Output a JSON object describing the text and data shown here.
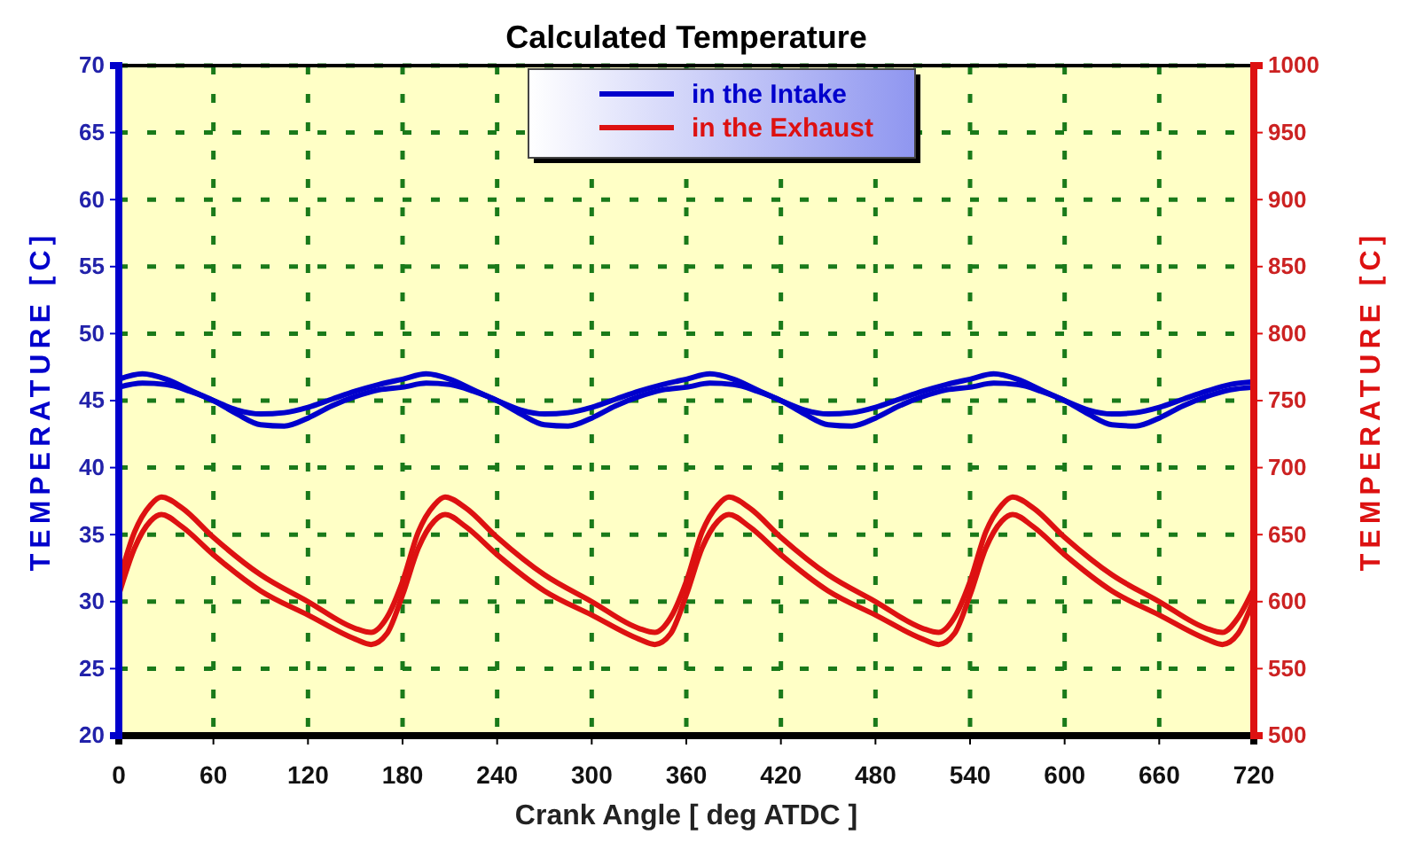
{
  "chart_data": {
    "type": "line",
    "title": "Calculated Temperature",
    "xlabel": "Crank Angle    [ deg ATDC ]",
    "ylabel": "TEMPERATURE   [C]",
    "y2label": "TEMPERATURE   [C]",
    "xlim": [
      0,
      720
    ],
    "xticks": [
      0,
      60,
      120,
      180,
      240,
      300,
      360,
      420,
      480,
      540,
      600,
      660,
      720
    ],
    "ylim": [
      20,
      70
    ],
    "yticks": [
      20,
      25,
      30,
      35,
      40,
      45,
      50,
      55,
      60,
      65,
      70
    ],
    "y2lim": [
      500,
      1000
    ],
    "y2ticks": [
      500,
      550,
      600,
      650,
      700,
      750,
      800,
      850,
      900,
      950,
      1000
    ],
    "grid": true,
    "legend": "top",
    "line_style": "solid",
    "series": [
      {
        "name": "in the Intake",
        "color": "#0000cc",
        "x": [
          0,
          15,
          30,
          45,
          60,
          75,
          90,
          105,
          120,
          135,
          150,
          165,
          180,
          195,
          210,
          225,
          240,
          255,
          270,
          285,
          300,
          315,
          330,
          345,
          360,
          375,
          390,
          405,
          420,
          435,
          450,
          465,
          480,
          495,
          510,
          525,
          540,
          555,
          570,
          585,
          600,
          615,
          630,
          645,
          660,
          675,
          690,
          705,
          720
        ],
        "values": [
          46.6,
          47.0,
          46.6,
          45.8,
          45.0,
          44.3,
          44.0,
          44.1,
          44.5,
          45.1,
          45.7,
          46.2,
          46.6,
          47.0,
          46.6,
          45.8,
          45.0,
          44.3,
          44.0,
          44.1,
          44.5,
          45.1,
          45.7,
          46.2,
          46.6,
          47.0,
          46.6,
          45.8,
          45.0,
          44.3,
          44.0,
          44.1,
          44.5,
          45.1,
          45.7,
          46.2,
          46.6,
          47.0,
          46.6,
          45.8,
          45.0,
          44.3,
          44.0,
          44.1,
          44.5,
          45.1,
          45.7,
          46.2,
          46.4
        ]
      },
      {
        "color": "#0000cc",
        "x": [
          0,
          15,
          30,
          45,
          60,
          75,
          90,
          105,
          120,
          135,
          150,
          165,
          180,
          195,
          210,
          225,
          240,
          255,
          270,
          285,
          300,
          315,
          330,
          345,
          360,
          375,
          390,
          405,
          420,
          435,
          450,
          465,
          480,
          495,
          510,
          525,
          540,
          555,
          570,
          585,
          600,
          615,
          630,
          645,
          660,
          675,
          690,
          705,
          720
        ],
        "values": [
          46.0,
          46.3,
          46.2,
          45.7,
          45.0,
          44.0,
          43.2,
          43.1,
          43.7,
          44.6,
          45.3,
          45.8,
          46.0,
          46.3,
          46.2,
          45.7,
          45.0,
          44.0,
          43.2,
          43.1,
          43.7,
          44.6,
          45.3,
          45.8,
          46.0,
          46.3,
          46.2,
          45.7,
          45.0,
          44.0,
          43.2,
          43.1,
          43.7,
          44.6,
          45.3,
          45.8,
          46.0,
          46.3,
          46.2,
          45.7,
          45.0,
          44.0,
          43.2,
          43.1,
          43.7,
          44.6,
          45.3,
          45.8,
          46.0
        ]
      },
      {
        "name": "in the Exhaust",
        "color": "#dd1111",
        "axis": "y2",
        "x": [
          0,
          10,
          20,
          27,
          40,
          60,
          90,
          120,
          150,
          160,
          170,
          180,
          190,
          200,
          207,
          220,
          240,
          270,
          300,
          330,
          340,
          350,
          360,
          370,
          380,
          387,
          400,
          420,
          450,
          480,
          510,
          520,
          530,
          540,
          550,
          560,
          567,
          580,
          600,
          630,
          660,
          690,
          700,
          710,
          720
        ],
        "values": [
          615,
          652,
          672,
          678,
          670,
          648,
          620,
          600,
          580,
          577,
          588,
          615,
          652,
          672,
          678,
          670,
          648,
          620,
          600,
          580,
          577,
          588,
          615,
          652,
          672,
          678,
          670,
          648,
          620,
          600,
          580,
          577,
          588,
          615,
          652,
          672,
          678,
          670,
          648,
          620,
          600,
          580,
          577,
          588,
          610
        ]
      },
      {
        "color": "#dd1111",
        "axis": "y2",
        "x": [
          0,
          10,
          20,
          27,
          40,
          60,
          90,
          120,
          150,
          160,
          170,
          180,
          190,
          200,
          207,
          220,
          240,
          270,
          300,
          330,
          340,
          350,
          360,
          370,
          380,
          387,
          400,
          420,
          450,
          480,
          510,
          520,
          530,
          540,
          550,
          560,
          567,
          580,
          600,
          630,
          660,
          690,
          700,
          710,
          720
        ],
        "values": [
          605,
          640,
          660,
          665,
          656,
          635,
          608,
          590,
          572,
          568,
          576,
          605,
          640,
          660,
          665,
          656,
          635,
          608,
          590,
          572,
          568,
          576,
          605,
          640,
          660,
          665,
          656,
          635,
          608,
          590,
          572,
          568,
          576,
          605,
          640,
          660,
          665,
          656,
          635,
          608,
          590,
          572,
          568,
          576,
          602
        ]
      }
    ]
  }
}
